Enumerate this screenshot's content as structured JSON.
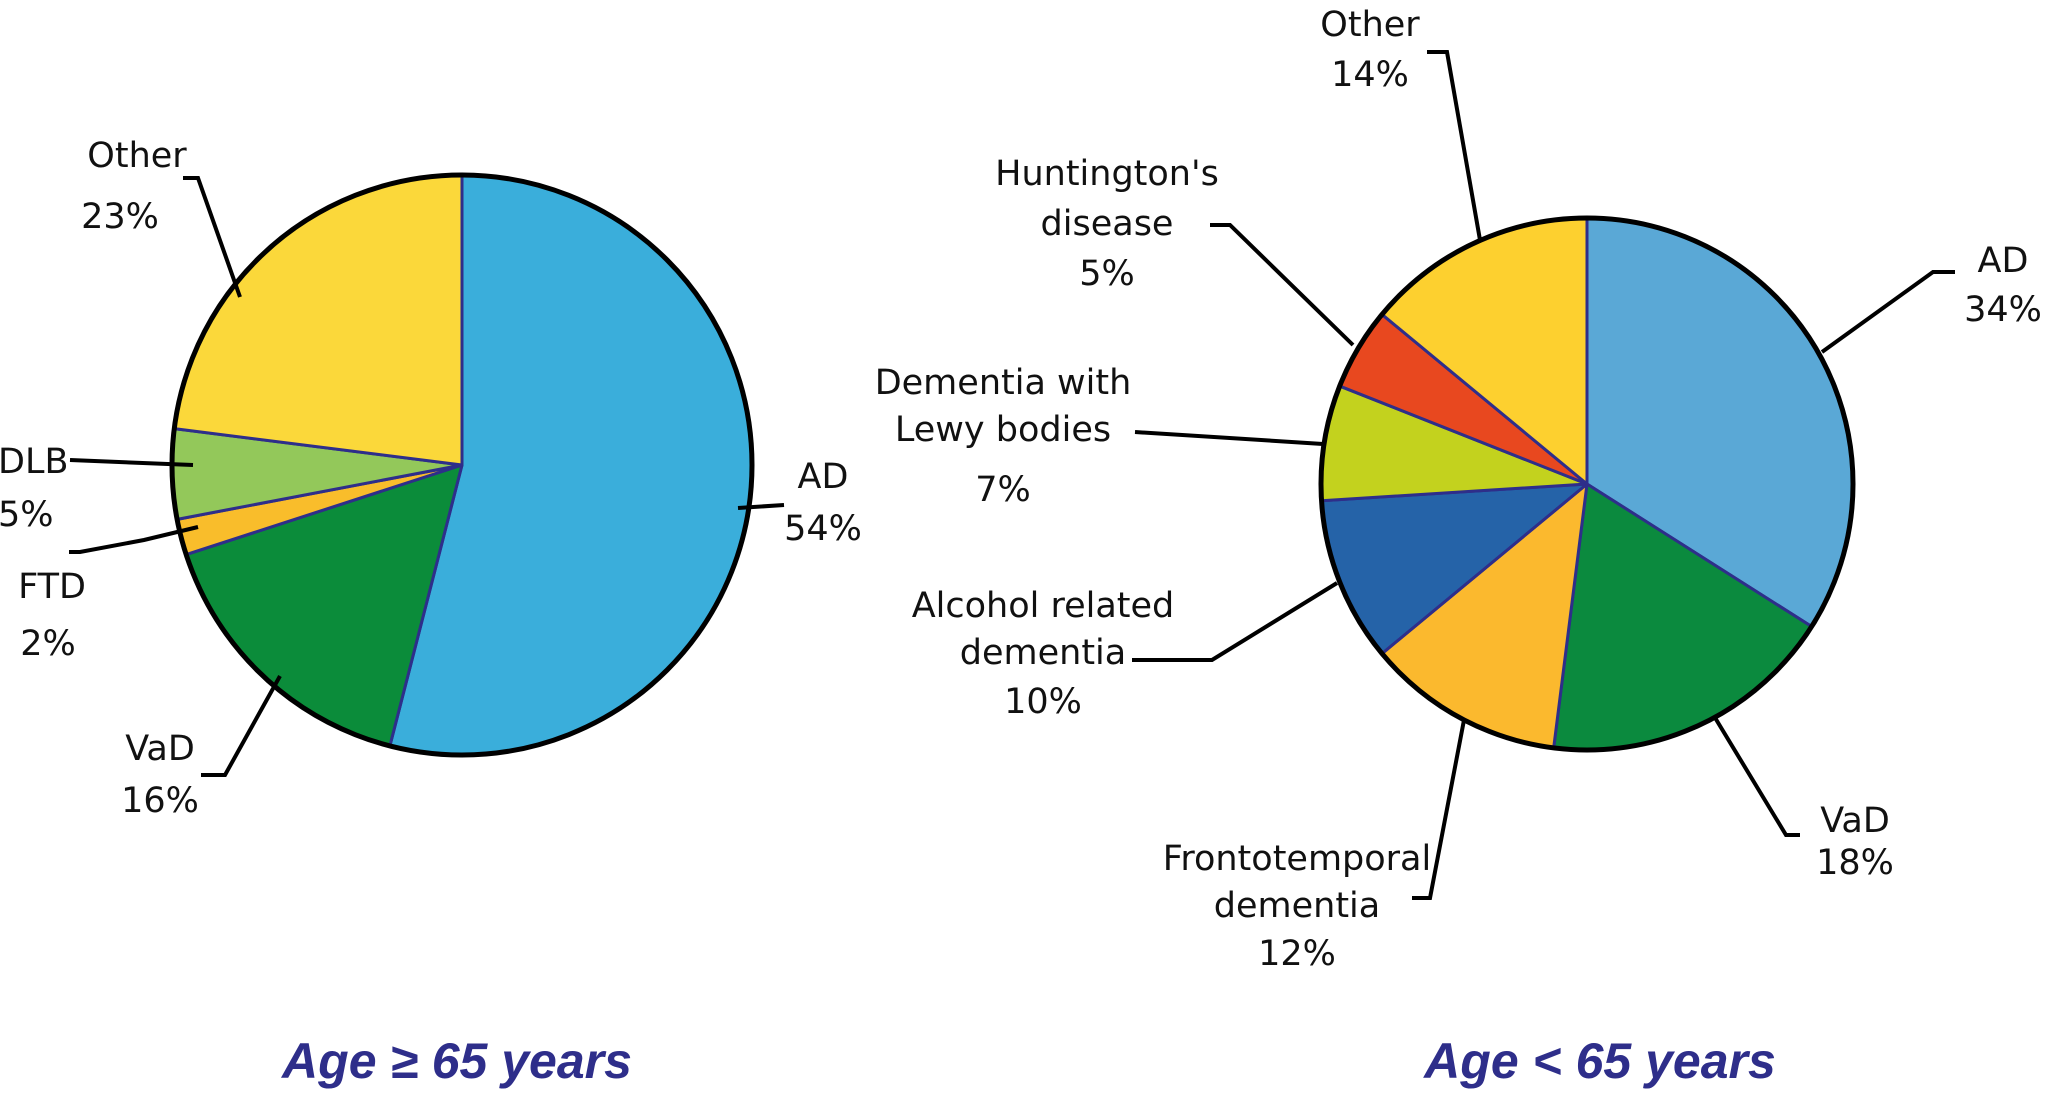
{
  "colors": {
    "title": "#2e2e8a",
    "outline": "#000000",
    "divider": "#2e2e8a"
  },
  "chart_data": [
    {
      "type": "pie",
      "title": "Age ≥ 65 years",
      "slices": [
        {
          "label": "AD",
          "value": 54,
          "pct_label": "54%",
          "color": "#3aaedb"
        },
        {
          "label": "VaD",
          "value": 16,
          "pct_label": "16%",
          "color": "#0b8c3a"
        },
        {
          "label": "FTD",
          "value": 2,
          "pct_label": "2%",
          "color": "#f9bd2b"
        },
        {
          "label": "DLB",
          "value": 5,
          "pct_label": "5%",
          "color": "#93c85a"
        },
        {
          "label": "Other",
          "value": 23,
          "pct_label": "23%",
          "color": "#fbd83a"
        }
      ]
    },
    {
      "type": "pie",
      "title": "Age < 65 years",
      "slices": [
        {
          "label": "AD",
          "value": 34,
          "pct_label": "34%",
          "color": "#5aa8d6"
        },
        {
          "label": "VaD",
          "value": 18,
          "pct_label": "18%",
          "color": "#0b8a3e"
        },
        {
          "label": "Frontotemporal dementia",
          "value": 12,
          "pct_label": "12%",
          "color": "#fbb92e"
        },
        {
          "label": "Alcohol related dementia",
          "value": 10,
          "pct_label": "10%",
          "color": "#2563a8"
        },
        {
          "label": "Dementia with Lewy bodies",
          "value": 7,
          "pct_label": "7%",
          "color": "#c3d21e"
        },
        {
          "label": "Huntington's disease",
          "value": 5,
          "pct_label": "5%",
          "color": "#e8481f"
        },
        {
          "label": "Other",
          "value": 14,
          "pct_label": "14%",
          "color": "#fdd02f"
        }
      ]
    }
  ]
}
